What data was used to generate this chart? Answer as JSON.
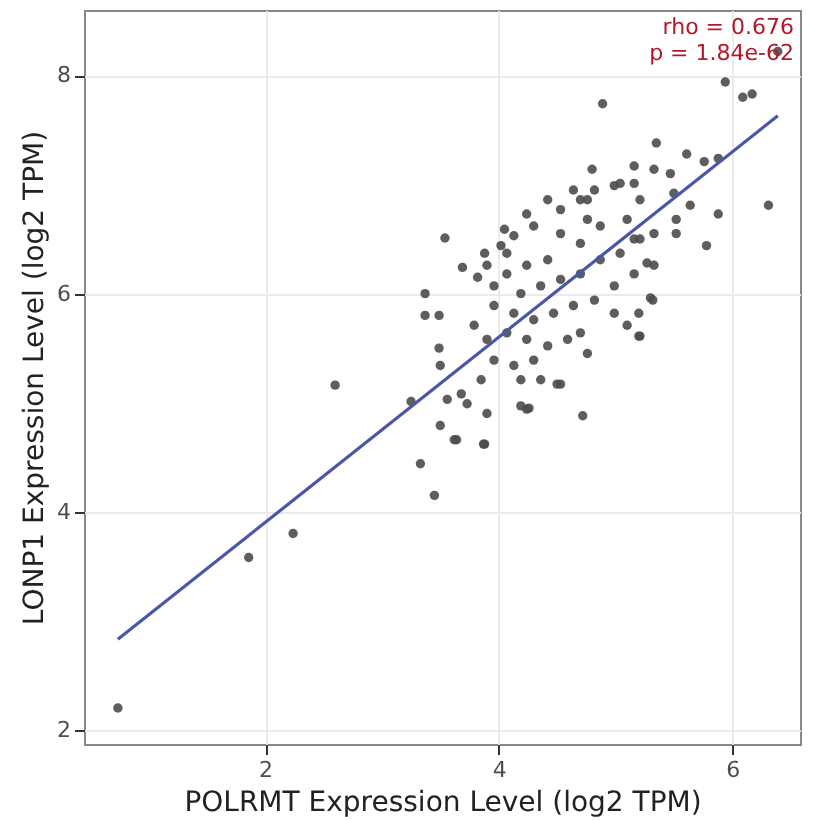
{
  "chart_data": {
    "type": "scatter",
    "xlabel": "POLRMT Expression Level (log2 TPM)",
    "ylabel": "LONP1 Expression Level (log2 TPM)",
    "xlim": [
      0.45,
      6.58
    ],
    "ylim": [
      1.87,
      8.6
    ],
    "xticks": [
      2,
      4,
      6
    ],
    "yticks": [
      2,
      4,
      6,
      8
    ],
    "grid": true,
    "annotations": [
      "rho = 0.676",
      "p = 1.84e-62"
    ],
    "series": [
      {
        "marker": "circle",
        "color": "#4d4d4d",
        "x": [
          5.94,
          6.09,
          6.17,
          6.39,
          4.89,
          5.35,
          5.61,
          5.76,
          5.88,
          6.31,
          5.88,
          5.78,
          4.8,
          3.54,
          3.69,
          3.37,
          3.37,
          3.49,
          3.49,
          2.6,
          5.3,
          5.2,
          5.33,
          5.52,
          5.64,
          3.25,
          3.33,
          3.45,
          3.88,
          3.64,
          4.72,
          2.24,
          1.86,
          0.74,
          3.5,
          4.19,
          4.26,
          4.5,
          3.5,
          3.82,
          4.02,
          4.13,
          4.3,
          4.53,
          4.7,
          4.82,
          4.99,
          5.16,
          5.21,
          5.1,
          4.87,
          4.7,
          4.53,
          4.42,
          4.24,
          4.07,
          3.96,
          4.19,
          4.36,
          4.53,
          4.7,
          4.87,
          5.04,
          5.21,
          5.33,
          5.16,
          4.99,
          4.82,
          4.64,
          4.47,
          4.3,
          4.13,
          3.96,
          3.79,
          3.9,
          4.07,
          4.24,
          4.42,
          4.59,
          4.76,
          4.7,
          4.99,
          5.1,
          5.21,
          5.32,
          3.96,
          4.13,
          4.3,
          4.19,
          4.36,
          4.53,
          3.85,
          3.68,
          3.56,
          3.73,
          3.9,
          4.24,
          3.62,
          3.87,
          5.52,
          5.5,
          4.76,
          4.24,
          4.42,
          4.64,
          4.05,
          3.88,
          3.9,
          5.16,
          5.04,
          4.76,
          5.33,
          5.47,
          4.07,
          5.16,
          5.27,
          5.2
        ],
        "values": [
          7.94,
          7.8,
          7.83,
          8.22,
          7.74,
          7.38,
          7.28,
          7.21,
          7.24,
          6.81,
          6.73,
          6.44,
          7.14,
          6.51,
          6.24,
          6.0,
          5.8,
          5.8,
          5.5,
          5.16,
          5.96,
          5.61,
          6.26,
          6.55,
          6.81,
          5.01,
          4.44,
          4.15,
          4.62,
          4.66,
          4.88,
          3.8,
          3.58,
          2.2,
          4.79,
          4.97,
          4.95,
          5.17,
          5.34,
          6.15,
          6.44,
          6.53,
          6.62,
          6.77,
          6.86,
          6.95,
          6.99,
          7.01,
          6.86,
          6.68,
          6.62,
          6.46,
          6.55,
          6.31,
          6.26,
          6.18,
          6.07,
          6.0,
          6.07,
          6.13,
          6.18,
          6.31,
          6.37,
          6.5,
          6.55,
          6.18,
          6.07,
          5.94,
          5.89,
          5.82,
          5.76,
          5.82,
          5.89,
          5.71,
          5.58,
          5.64,
          5.58,
          5.52,
          5.58,
          5.45,
          5.64,
          5.82,
          5.71,
          5.61,
          5.94,
          5.39,
          5.34,
          5.39,
          5.21,
          5.21,
          5.17,
          5.21,
          5.08,
          5.03,
          4.99,
          4.9,
          4.94,
          4.66,
          4.62,
          6.68,
          6.92,
          6.68,
          6.73,
          6.86,
          6.95,
          6.59,
          6.37,
          6.26,
          7.17,
          7.01,
          6.86,
          7.14,
          7.1,
          6.37,
          6.5,
          6.28,
          5.82
        ]
      },
      {
        "type": "line",
        "color": "#4a56a6",
        "x": [
          0.74,
          6.39
        ],
        "values": [
          2.83,
          7.63
        ]
      }
    ]
  }
}
